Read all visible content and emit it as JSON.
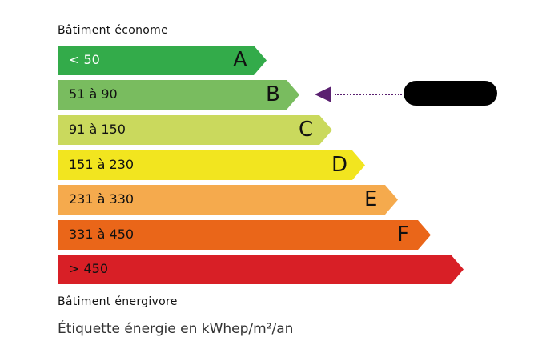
{
  "top_label": "Bâtiment économe",
  "bottom_label": "Bâtiment énergivore",
  "footer": "Étiquette énergie en kWhep/m²/an",
  "classes": [
    {
      "range": "< 50",
      "letter": "A",
      "color": "#33ab4a",
      "text_color": "#ffffff"
    },
    {
      "range": "51 à 90",
      "letter": "B",
      "color": "#79bc5f",
      "text_color": "#111111"
    },
    {
      "range": "91 à 150",
      "letter": "C",
      "color": "#cad95d",
      "text_color": "#111111"
    },
    {
      "range": "151 à 230",
      "letter": "D",
      "color": "#f2e51f",
      "text_color": "#111111"
    },
    {
      "range": "231 à 330",
      "letter": "E",
      "color": "#f5aa4d",
      "text_color": "#111111"
    },
    {
      "range": "331 à 450",
      "letter": "F",
      "color": "#ea6619",
      "text_color": "#111111"
    },
    {
      "range": "> 450",
      "letter": "",
      "color": "#d81f26",
      "text_color": "#111111"
    }
  ],
  "indicator": {
    "class": "B",
    "color": "#5a2070",
    "value_redacted": true
  }
}
